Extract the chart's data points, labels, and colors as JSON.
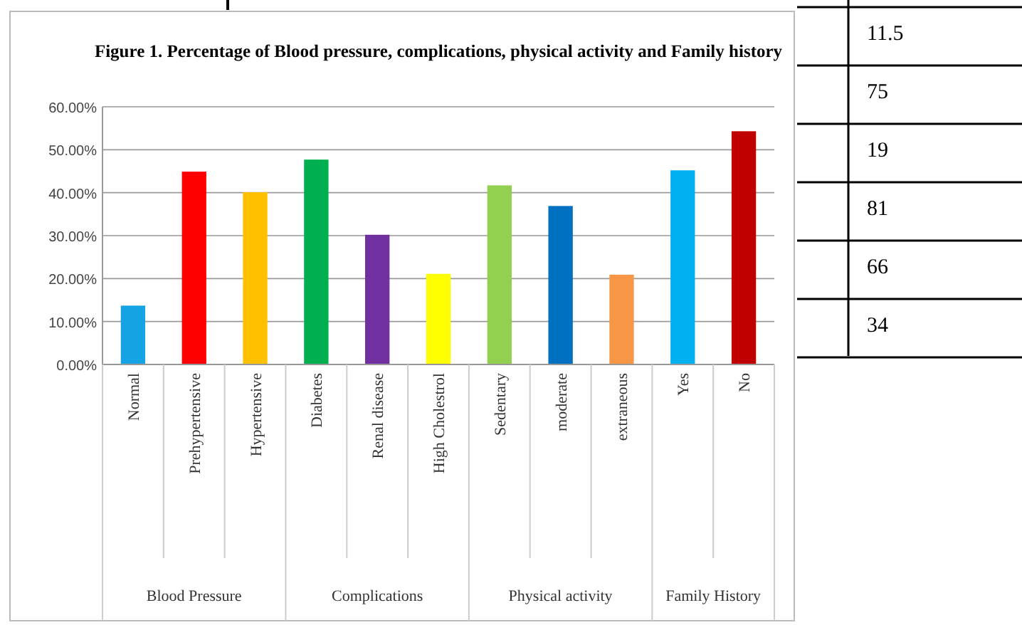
{
  "chart_data": {
    "type": "bar",
    "title": "Figure 1. Percentage of Blood pressure, complications, physical activity and Family history",
    "categories": [
      "Normal",
      "Prehypertensive",
      "Hypertensive",
      "Diabetes",
      "Renal disease",
      "High Cholestrol",
      "Sedentary",
      "moderate",
      "extraneous",
      "Yes",
      "No"
    ],
    "values": [
      13.7,
      44.9,
      40.1,
      47.7,
      30.2,
      21.1,
      41.7,
      36.9,
      20.9,
      45.2,
      54.3
    ],
    "colors": [
      "#16a3e6",
      "#ff0000",
      "#ffc000",
      "#00b050",
      "#7030a0",
      "#ffff00",
      "#92d050",
      "#0070c0",
      "#f79646",
      "#00b0f0",
      "#c00000"
    ],
    "ylim": [
      0,
      60
    ],
    "yticks": [
      {
        "value": 0,
        "label": "0.00%"
      },
      {
        "value": 10,
        "label": "10.00%"
      },
      {
        "value": 20,
        "label": "20.00%"
      },
      {
        "value": 30,
        "label": "30.00%"
      },
      {
        "value": 40,
        "label": "40.00%"
      },
      {
        "value": 50,
        "label": "50.00%"
      },
      {
        "value": 60,
        "label": "60.00%"
      }
    ],
    "grid": "y",
    "annotations": [
      "Blood Pressure",
      "Complications",
      "Physical activity",
      "Family History",
      "11.5",
      "75",
      "19",
      "81",
      "66",
      "34"
    ]
  }
}
